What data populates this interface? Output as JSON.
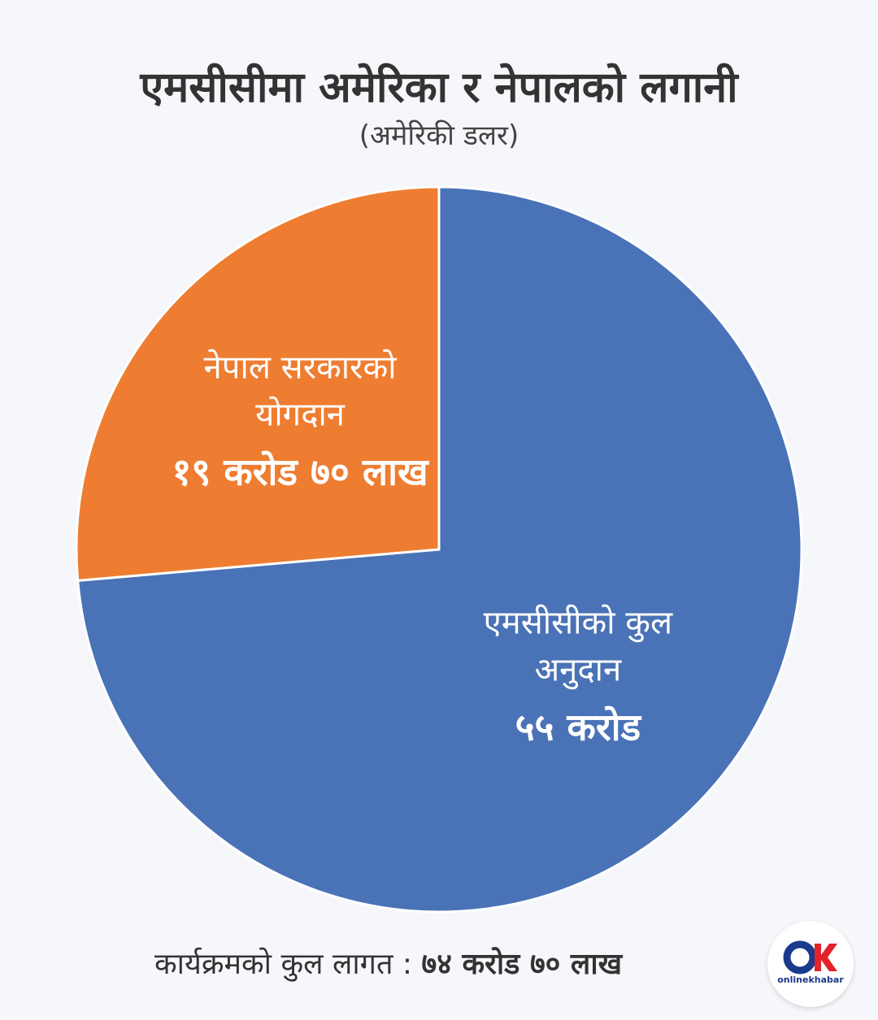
{
  "chart_data": {
    "type": "pie",
    "title": "एमसीसीमा अमेरिका र नेपालको लगानी",
    "subtitle": "(अमेरिकी डलर)",
    "categories": [
      "एमसीसीको कुल अनुदान",
      "नेपाल सरकारको योगदान"
    ],
    "values": [
      55,
      19.7
    ],
    "value_labels": [
      "५५ करोड",
      "१९ करोड ७० लाख"
    ],
    "colors": [
      "#4a72b6",
      "#ee7d31"
    ],
    "footer_label": "कार्यक्रमको कुल लागत :",
    "footer_value": "७४ करोड ७० लाख",
    "logo_text": "onlinekhabar"
  }
}
